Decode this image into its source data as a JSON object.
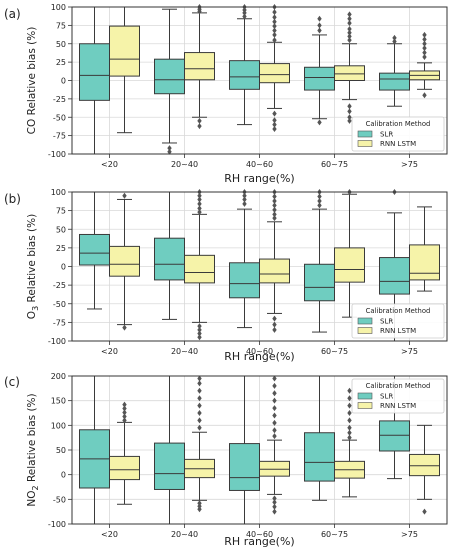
{
  "colors": {
    "slr": "#6fcdc0",
    "lstm": "#f6f3a9",
    "whisker": "#3a3a3a",
    "grid": "#d9d9d9"
  },
  "chart_data": [
    {
      "type": "box",
      "panel_label": "(a)",
      "ylabel": "CO Relative bias (%)",
      "xlabel": "RH range(%)",
      "categories": [
        "<20",
        "20~40",
        "40~60",
        "60~75",
        ">75"
      ],
      "ylim": [
        -100,
        100
      ],
      "yticks": [
        -100,
        -75,
        -50,
        -25,
        0,
        25,
        50,
        75,
        100
      ],
      "grid": true,
      "legend": {
        "title": "Calibration Method",
        "position": "bottom-right",
        "entries": [
          "SLR",
          "RNN LSTM"
        ]
      },
      "series": [
        {
          "name": "SLR",
          "color": "#6fcdc0",
          "boxes": [
            {
              "whislo": -100,
              "q1": -27,
              "med": 7,
              "q3": 50,
              "whishi": 100,
              "fliers": []
            },
            {
              "whislo": -85,
              "q1": -18,
              "med": 1,
              "q3": 29,
              "whishi": 97,
              "fliers": [
                -92,
                -97
              ]
            },
            {
              "whislo": -60,
              "q1": -12,
              "med": 5,
              "q3": 27,
              "whishi": 84,
              "fliers": [
                87,
                92,
                96,
                100
              ]
            },
            {
              "whislo": -52,
              "q1": -13,
              "med": 4,
              "q3": 18,
              "whishi": 62,
              "fliers": [
                -57,
                68,
                75,
                84
              ]
            },
            {
              "whislo": -35,
              "q1": -13,
              "med": 2,
              "q3": 10,
              "whishi": 50,
              "fliers": [
                53,
                58
              ]
            }
          ]
        },
        {
          "name": "RNN LSTM",
          "color": "#f6f3a9",
          "boxes": [
            {
              "whislo": -71,
              "q1": 6,
              "med": 29,
              "q3": 74,
              "whishi": 100,
              "fliers": []
            },
            {
              "whislo": -50,
              "q1": 1,
              "med": 16,
              "q3": 38,
              "whishi": 92,
              "fliers": [
                -55,
                -62,
                94,
                97,
                100
              ]
            },
            {
              "whislo": -38,
              "q1": -3,
              "med": 8,
              "q3": 23,
              "whishi": 52,
              "fliers": [
                -45,
                -54,
                -60,
                -66,
                55,
                62,
                68,
                74,
                80,
                86,
                93,
                100
              ]
            },
            {
              "whislo": -26,
              "q1": 0,
              "med": 9,
              "q3": 20,
              "whishi": 50,
              "fliers": [
                -35,
                -42,
                -50,
                -55,
                55,
                60,
                65,
                70,
                78,
                84,
                90
              ]
            },
            {
              "whislo": -12,
              "q1": 1,
              "med": 7,
              "q3": 13,
              "whishi": 24,
              "fliers": [
                -20,
                32,
                38,
                44,
                50,
                56,
                62
              ]
            }
          ]
        }
      ]
    },
    {
      "type": "box",
      "panel_label": "(b)",
      "ylabel": "O3 Relative bias (%)",
      "xlabel": "RH range(%)",
      "categories": [
        "<20",
        "20~40",
        "40~60",
        "60~75",
        ">75"
      ],
      "ylim": [
        -100,
        100
      ],
      "yticks": [
        -100,
        -75,
        -50,
        -25,
        0,
        25,
        50,
        75,
        100
      ],
      "grid": true,
      "legend": {
        "title": "Calibration Method",
        "position": "bottom-right",
        "entries": [
          "SLR",
          "RNN LSTM"
        ]
      },
      "series": [
        {
          "name": "SLR",
          "color": "#6fcdc0",
          "boxes": [
            {
              "whislo": -57,
              "q1": 2,
              "med": 18,
              "q3": 43,
              "whishi": 100,
              "fliers": []
            },
            {
              "whislo": -71,
              "q1": -18,
              "med": 3,
              "q3": 38,
              "whishi": 100,
              "fliers": []
            },
            {
              "whislo": -82,
              "q1": -42,
              "med": -23,
              "q3": 5,
              "whishi": 77,
              "fliers": [
                84,
                90,
                95,
                100
              ]
            },
            {
              "whislo": -88,
              "q1": -46,
              "med": -28,
              "q3": 3,
              "whishi": 77,
              "fliers": [
                82,
                88,
                94,
                100
              ]
            },
            {
              "whislo": -100,
              "q1": -37,
              "med": -20,
              "q3": 12,
              "whishi": 72,
              "fliers": [
                100
              ]
            }
          ]
        },
        {
          "name": "RNN LSTM",
          "color": "#f6f3a9",
          "boxes": [
            {
              "whislo": -78,
              "q1": -13,
              "med": 3,
              "q3": 27,
              "whishi": 90,
              "fliers": [
                -82,
                95
              ]
            },
            {
              "whislo": -75,
              "q1": -22,
              "med": -8,
              "q3": 15,
              "whishi": 70,
              "fliers": [
                -80,
                -85,
                -90,
                -95,
                73,
                78,
                84,
                90,
                95,
                100
              ]
            },
            {
              "whislo": -63,
              "q1": -22,
              "med": -10,
              "q3": 10,
              "whishi": 60,
              "fliers": [
                -70,
                -78,
                -85,
                65,
                70,
                76,
                82,
                88,
                94,
                100
              ]
            },
            {
              "whislo": -68,
              "q1": -21,
              "med": -4,
              "q3": 25,
              "whishi": 97,
              "fliers": [
                100
              ]
            },
            {
              "whislo": -33,
              "q1": -18,
              "med": -9,
              "q3": 29,
              "whishi": 80,
              "fliers": []
            }
          ]
        }
      ]
    },
    {
      "type": "box",
      "panel_label": "(c)",
      "ylabel": "NO2 Relative bias (%)",
      "xlabel": "RH range(%)",
      "categories": [
        "<20",
        "20~40",
        "40~60",
        "60~75",
        ">75"
      ],
      "ylim": [
        -100,
        200
      ],
      "yticks": [
        -100,
        -50,
        0,
        50,
        100,
        150,
        200
      ],
      "grid": true,
      "legend": {
        "title": "Calibration Method",
        "position": "top-right",
        "entries": [
          "SLR",
          "RNN LSTM"
        ]
      },
      "series": [
        {
          "name": "SLR",
          "color": "#6fcdc0",
          "boxes": [
            {
              "whislo": -100,
              "q1": -27,
              "med": 32,
              "q3": 91,
              "whishi": 200,
              "fliers": []
            },
            {
              "whislo": -100,
              "q1": -30,
              "med": 2,
              "q3": 64,
              "whishi": 200,
              "fliers": []
            },
            {
              "whislo": -100,
              "q1": -32,
              "med": -6,
              "q3": 63,
              "whishi": 200,
              "fliers": []
            },
            {
              "whislo": -52,
              "q1": -13,
              "med": 25,
              "q3": 85,
              "whishi": 200,
              "fliers": []
            },
            {
              "whislo": -8,
              "q1": 48,
              "med": 80,
              "q3": 109,
              "whishi": 200,
              "fliers": []
            }
          ]
        },
        {
          "name": "RNN LSTM",
          "color": "#f6f3a9",
          "boxes": [
            {
              "whislo": -60,
              "q1": -10,
              "med": 10,
              "q3": 37,
              "whishi": 106,
              "fliers": [
                110,
                118,
                126,
                134,
                142
              ]
            },
            {
              "whislo": -52,
              "q1": -6,
              "med": 12,
              "q3": 31,
              "whishi": 86,
              "fliers": [
                -58,
                -64,
                -70,
                95,
                110,
                125,
                140,
                155,
                170,
                185,
                195
              ]
            },
            {
              "whislo": -40,
              "q1": -3,
              "med": 11,
              "q3": 27,
              "whishi": 70,
              "fliers": [
                -48,
                -56,
                -65,
                -75,
                78,
                90,
                105,
                120,
                135,
                150,
                165,
                180,
                195
              ]
            },
            {
              "whislo": -45,
              "q1": -7,
              "med": 10,
              "q3": 27,
              "whishi": 70,
              "fliers": [
                75,
                85,
                95,
                110,
                125,
                140,
                155,
                170
              ]
            },
            {
              "whislo": -50,
              "q1": -2,
              "med": 18,
              "q3": 41,
              "whishi": 100,
              "fliers": [
                -75
              ]
            }
          ]
        }
      ]
    }
  ]
}
